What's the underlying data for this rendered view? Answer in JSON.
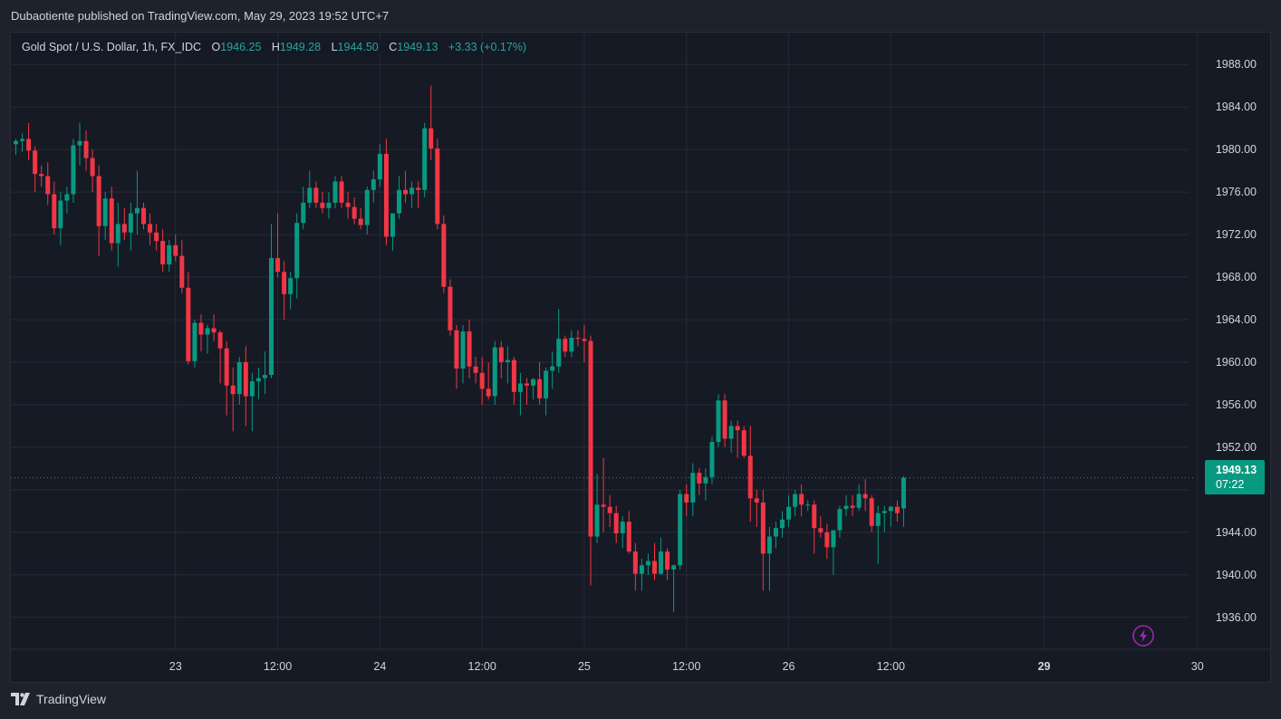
{
  "banner": {
    "author": "Dubaotiente",
    "text": "published on TradingView.com, May 29, 2023 19:52 UTC+7"
  },
  "legend": {
    "symbol": "Gold Spot / U.S. Dollar, 1h, FX_IDC",
    "o_label": "O",
    "o_value": "1946.25",
    "h_label": "H",
    "h_value": "1949.28",
    "l_label": "L",
    "l_value": "1944.50",
    "c_label": "C",
    "c_value": "1949.13",
    "change": "+3.33 (+0.17%)"
  },
  "price_badge": {
    "price": "1949.13",
    "countdown": "07:22"
  },
  "footer": {
    "brand": "TradingView"
  },
  "colors": {
    "up": "#089981",
    "down": "#f23645",
    "background": "#161a25",
    "grid": "#252a36",
    "text": "#d1d4dc"
  },
  "icons": {
    "bolt": "lightning-bolt-icon",
    "logo": "tradingview-logo-icon"
  },
  "chart_data": {
    "type": "candlestick",
    "interval": "1h",
    "ylim": [
      1933,
      1991
    ],
    "y_ticks": [
      1936,
      1940,
      1944,
      1948,
      1952,
      1956,
      1960,
      1964,
      1968,
      1972,
      1976,
      1980,
      1984,
      1988
    ],
    "y_tick_labels": [
      "1936.00",
      "1940.00",
      "1944.00",
      "1948.00",
      "1952.00",
      "1956.00",
      "1960.00",
      "1964.00",
      "1968.00",
      "1972.00",
      "1976.00",
      "1980.00",
      "1984.00",
      "1988.00"
    ],
    "x_ticks": [
      {
        "bar": 25,
        "label": "23",
        "bold": false
      },
      {
        "bar": 41,
        "label": "12:00",
        "bold": false
      },
      {
        "bar": 57,
        "label": "24",
        "bold": false
      },
      {
        "bar": 73,
        "label": "12:00",
        "bold": false
      },
      {
        "bar": 89,
        "label": "25",
        "bold": false
      },
      {
        "bar": 105,
        "label": "12:00",
        "bold": false
      },
      {
        "bar": 121,
        "label": "26",
        "bold": false
      },
      {
        "bar": 137,
        "label": "12:00",
        "bold": false
      },
      {
        "bar": 161,
        "label": "29",
        "bold": true
      },
      {
        "bar": 185,
        "label": "30",
        "bold": false
      }
    ],
    "last_price": 1949.13,
    "candles": [
      [
        1980.5,
        1981.0,
        1979.5,
        1980.8
      ],
      [
        1980.8,
        1981.5,
        1979.8,
        1981.0
      ],
      [
        1981.0,
        1982.5,
        1979.0,
        1979.9
      ],
      [
        1979.9,
        1980.3,
        1976.0,
        1977.7
      ],
      [
        1977.7,
        1978.5,
        1976.5,
        1977.5
      ],
      [
        1977.5,
        1978.8,
        1974.8,
        1975.8
      ],
      [
        1975.8,
        1977.0,
        1972.0,
        1972.6
      ],
      [
        1972.6,
        1976.0,
        1971.0,
        1975.2
      ],
      [
        1975.2,
        1976.5,
        1974.0,
        1975.8
      ],
      [
        1975.8,
        1981.0,
        1975.0,
        1980.4
      ],
      [
        1980.4,
        1982.5,
        1978.5,
        1980.8
      ],
      [
        1980.8,
        1981.8,
        1978.0,
        1979.2
      ],
      [
        1979.2,
        1980.0,
        1976.0,
        1977.5
      ],
      [
        1977.5,
        1978.5,
        1970.0,
        1972.8
      ],
      [
        1972.8,
        1976.0,
        1971.5,
        1975.4
      ],
      [
        1975.4,
        1976.5,
        1970.5,
        1971.2
      ],
      [
        1971.2,
        1975.0,
        1969.0,
        1973.0
      ],
      [
        1973.0,
        1974.5,
        1971.5,
        1972.2
      ],
      [
        1972.2,
        1975.0,
        1970.5,
        1974.0
      ],
      [
        1974.0,
        1978.0,
        1972.0,
        1974.5
      ],
      [
        1974.5,
        1975.0,
        1972.5,
        1973.0
      ],
      [
        1973.0,
        1974.0,
        1971.0,
        1972.2
      ],
      [
        1972.2,
        1973.0,
        1970.5,
        1971.4
      ],
      [
        1971.4,
        1972.5,
        1968.5,
        1969.2
      ],
      [
        1969.2,
        1971.5,
        1968.5,
        1971.0
      ],
      [
        1971.0,
        1972.0,
        1969.5,
        1970.0
      ],
      [
        1970.0,
        1971.5,
        1966.5,
        1967.0
      ],
      [
        1967.0,
        1968.5,
        1959.8,
        1960.1
      ],
      [
        1960.1,
        1964.0,
        1959.5,
        1963.7
      ],
      [
        1963.7,
        1964.5,
        1961.0,
        1962.6
      ],
      [
        1962.6,
        1963.5,
        1960.8,
        1963.2
      ],
      [
        1963.2,
        1964.5,
        1962.0,
        1962.8
      ],
      [
        1962.8,
        1963.0,
        1958.0,
        1961.3
      ],
      [
        1961.3,
        1962.0,
        1955.0,
        1957.8
      ],
      [
        1957.8,
        1959.5,
        1953.5,
        1957.0
      ],
      [
        1957.0,
        1960.5,
        1956.0,
        1960.0
      ],
      [
        1960.0,
        1961.5,
        1954.0,
        1956.8
      ],
      [
        1956.8,
        1959.0,
        1953.5,
        1958.2
      ],
      [
        1958.2,
        1959.5,
        1956.5,
        1958.5
      ],
      [
        1958.5,
        1961.0,
        1957.0,
        1958.8
      ],
      [
        1958.8,
        1973.0,
        1958.5,
        1969.8
      ],
      [
        1969.8,
        1974.0,
        1968.0,
        1968.5
      ],
      [
        1968.5,
        1969.5,
        1964.0,
        1966.4
      ],
      [
        1966.4,
        1968.5,
        1965.0,
        1967.9
      ],
      [
        1967.9,
        1974.0,
        1966.0,
        1973.1
      ],
      [
        1973.1,
        1976.5,
        1972.5,
        1975.0
      ],
      [
        1975.0,
        1978.0,
        1974.5,
        1976.4
      ],
      [
        1976.4,
        1977.0,
        1974.5,
        1975.0
      ],
      [
        1975.0,
        1976.0,
        1974.0,
        1974.5
      ],
      [
        1974.5,
        1976.0,
        1973.5,
        1975.0
      ],
      [
        1975.0,
        1977.5,
        1974.5,
        1977.0
      ],
      [
        1977.0,
        1977.5,
        1974.5,
        1975.0
      ],
      [
        1975.0,
        1976.0,
        1973.5,
        1974.6
      ],
      [
        1974.6,
        1975.5,
        1973.0,
        1973.5
      ],
      [
        1973.5,
        1974.5,
        1972.5,
        1972.9
      ],
      [
        1972.9,
        1976.5,
        1972.0,
        1976.2
      ],
      [
        1976.2,
        1978.0,
        1975.0,
        1977.2
      ],
      [
        1977.2,
        1980.5,
        1976.5,
        1979.6
      ],
      [
        1979.6,
        1981.0,
        1971.0,
        1971.8
      ],
      [
        1971.8,
        1974.0,
        1970.5,
        1974.0
      ],
      [
        1974.0,
        1977.5,
        1973.5,
        1976.2
      ],
      [
        1976.2,
        1978.0,
        1975.0,
        1975.8
      ],
      [
        1975.8,
        1977.0,
        1974.5,
        1976.4
      ],
      [
        1976.4,
        1977.0,
        1974.5,
        1976.2
      ],
      [
        1976.2,
        1982.5,
        1975.5,
        1982.0
      ],
      [
        1982.0,
        1986.0,
        1979.0,
        1980.1
      ],
      [
        1980.1,
        1981.0,
        1972.5,
        1973.0
      ],
      [
        1973.0,
        1973.8,
        1966.5,
        1967.1
      ],
      [
        1967.1,
        1967.8,
        1962.5,
        1963.0
      ],
      [
        1963.0,
        1963.5,
        1957.5,
        1959.4
      ],
      [
        1959.4,
        1963.5,
        1958.0,
        1962.9
      ],
      [
        1962.9,
        1964.0,
        1958.5,
        1959.6
      ],
      [
        1959.6,
        1960.5,
        1958.0,
        1959.0
      ],
      [
        1959.0,
        1960.5,
        1956.0,
        1957.5
      ],
      [
        1957.5,
        1960.0,
        1956.5,
        1956.8
      ],
      [
        1956.8,
        1962.0,
        1956.0,
        1961.4
      ],
      [
        1961.4,
        1962.0,
        1958.5,
        1960.0
      ],
      [
        1960.0,
        1961.5,
        1958.0,
        1960.2
      ],
      [
        1960.2,
        1960.5,
        1956.0,
        1957.2
      ],
      [
        1957.2,
        1959.0,
        1955.0,
        1958.0
      ],
      [
        1958.0,
        1958.5,
        1956.0,
        1957.8
      ],
      [
        1957.8,
        1958.5,
        1956.5,
        1958.4
      ],
      [
        1958.4,
        1960.0,
        1956.0,
        1956.6
      ],
      [
        1956.6,
        1959.5,
        1955.0,
        1959.2
      ],
      [
        1959.2,
        1961.0,
        1957.5,
        1959.6
      ],
      [
        1959.6,
        1965.0,
        1959.0,
        1962.2
      ],
      [
        1962.2,
        1962.5,
        1960.5,
        1961.0
      ],
      [
        1961.0,
        1963.0,
        1960.5,
        1962.3
      ],
      [
        1962.3,
        1963.0,
        1961.5,
        1962.2
      ],
      [
        1962.2,
        1963.5,
        1960.0,
        1962.0
      ],
      [
        1962.0,
        1962.5,
        1939.0,
        1943.6
      ],
      [
        1943.6,
        1949.5,
        1943.0,
        1946.6
      ],
      [
        1946.6,
        1951.0,
        1944.0,
        1946.4
      ],
      [
        1946.4,
        1947.5,
        1944.5,
        1945.8
      ],
      [
        1945.8,
        1946.5,
        1943.0,
        1943.9
      ],
      [
        1943.9,
        1945.5,
        1942.5,
        1945.0
      ],
      [
        1945.0,
        1946.0,
        1942.0,
        1942.2
      ],
      [
        1942.2,
        1943.0,
        1938.5,
        1940.1
      ],
      [
        1940.1,
        1941.5,
        1938.5,
        1940.9
      ],
      [
        1940.9,
        1942.0,
        1940.0,
        1941.3
      ],
      [
        1941.3,
        1943.0,
        1939.5,
        1940.1
      ],
      [
        1940.1,
        1943.5,
        1940.0,
        1942.2
      ],
      [
        1942.2,
        1942.5,
        1939.5,
        1940.5
      ],
      [
        1940.5,
        1941.0,
        1936.5,
        1940.9
      ],
      [
        1940.9,
        1948.0,
        1940.5,
        1947.6
      ],
      [
        1947.6,
        1948.5,
        1945.5,
        1946.8
      ],
      [
        1946.8,
        1950.5,
        1945.5,
        1949.6
      ],
      [
        1949.6,
        1950.0,
        1947.5,
        1948.6
      ],
      [
        1948.6,
        1950.0,
        1947.0,
        1949.2
      ],
      [
        1949.2,
        1953.0,
        1948.5,
        1952.5
      ],
      [
        1952.5,
        1957.0,
        1952.0,
        1956.4
      ],
      [
        1956.4,
        1957.0,
        1952.0,
        1952.8
      ],
      [
        1952.8,
        1954.5,
        1951.5,
        1954.0
      ],
      [
        1954.0,
        1954.5,
        1951.0,
        1953.6
      ],
      [
        1953.6,
        1954.0,
        1951.0,
        1951.2
      ],
      [
        1951.2,
        1954.0,
        1945.0,
        1947.2
      ],
      [
        1947.2,
        1948.0,
        1944.5,
        1946.8
      ],
      [
        1946.8,
        1948.0,
        1938.5,
        1942.0
      ],
      [
        1942.0,
        1944.5,
        1938.5,
        1943.6
      ],
      [
        1943.6,
        1945.0,
        1942.5,
        1944.4
      ],
      [
        1944.4,
        1946.0,
        1943.5,
        1945.2
      ],
      [
        1945.2,
        1947.5,
        1944.5,
        1946.4
      ],
      [
        1946.4,
        1948.0,
        1945.5,
        1947.6
      ],
      [
        1947.6,
        1948.5,
        1945.5,
        1946.6
      ],
      [
        1946.6,
        1947.0,
        1946.0,
        1946.6
      ],
      [
        1946.6,
        1947.0,
        1942.0,
        1944.4
      ],
      [
        1944.4,
        1945.5,
        1943.5,
        1944.0
      ],
      [
        1944.0,
        1944.8,
        1941.5,
        1942.6
      ],
      [
        1942.6,
        1944.0,
        1940.0,
        1944.2
      ],
      [
        1944.2,
        1946.5,
        1943.5,
        1946.2
      ],
      [
        1946.2,
        1947.5,
        1945.5,
        1946.5
      ],
      [
        1946.5,
        1947.5,
        1945.5,
        1946.3
      ],
      [
        1946.3,
        1948.5,
        1946.0,
        1947.6
      ],
      [
        1947.6,
        1949.0,
        1946.0,
        1947.2
      ],
      [
        1947.2,
        1947.5,
        1944.0,
        1944.6
      ],
      [
        1944.6,
        1946.5,
        1941.0,
        1945.8
      ],
      [
        1945.8,
        1946.5,
        1944.0,
        1946.0
      ],
      [
        1946.0,
        1946.5,
        1944.5,
        1946.4
      ],
      [
        1946.4,
        1947.0,
        1945.0,
        1945.8
      ],
      [
        1946.25,
        1949.28,
        1944.5,
        1949.13
      ]
    ]
  }
}
